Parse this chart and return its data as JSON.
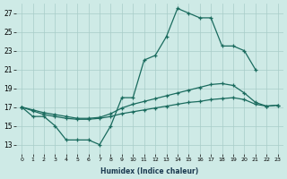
{
  "xlabel": "Humidex (Indice chaleur)",
  "line_color": "#1a6b5e",
  "bg_color": "#ceeae6",
  "grid_color": "#a8cdc8",
  "ylim": [
    12,
    28
  ],
  "xlim": [
    -0.5,
    23.5
  ],
  "yticks": [
    13,
    15,
    17,
    19,
    21,
    23,
    25,
    27
  ],
  "xticks": [
    0,
    1,
    2,
    3,
    4,
    5,
    6,
    7,
    8,
    9,
    10,
    11,
    12,
    13,
    14,
    15,
    16,
    17,
    18,
    19,
    20,
    21,
    22,
    23
  ],
  "main_x": [
    0,
    1,
    2,
    3,
    4,
    5,
    6,
    7,
    8,
    9,
    10,
    11,
    12,
    13,
    14,
    15,
    16,
    17,
    18,
    19,
    20,
    21
  ],
  "main_y": [
    17,
    16,
    16,
    15,
    13.5,
    13.5,
    13.5,
    13,
    15,
    18,
    18,
    22,
    22.5,
    24.5,
    27.5,
    27,
    26.5,
    26.5,
    23.5,
    23.5,
    23,
    21
  ],
  "upper_x": [
    0,
    1,
    2,
    3,
    4,
    5,
    6,
    7,
    8,
    9,
    10,
    11,
    12,
    13,
    14,
    15,
    16,
    17,
    18,
    19,
    20,
    21,
    22,
    23
  ],
  "upper_y": [
    17,
    16.7,
    16.4,
    16.2,
    16.0,
    15.8,
    15.8,
    15.9,
    16.3,
    16.9,
    17.3,
    17.6,
    17.9,
    18.2,
    18.5,
    18.8,
    19.1,
    19.4,
    19.5,
    19.3,
    18.5,
    17.5,
    17.1,
    17.2
  ],
  "lower_x": [
    0,
    1,
    2,
    3,
    4,
    5,
    6,
    7,
    8,
    9,
    10,
    11,
    12,
    13,
    14,
    15,
    16,
    17,
    18,
    19,
    20,
    21,
    22,
    23
  ],
  "lower_y": [
    17,
    16.6,
    16.2,
    16.0,
    15.8,
    15.7,
    15.7,
    15.8,
    16.0,
    16.3,
    16.5,
    16.7,
    16.9,
    17.1,
    17.3,
    17.5,
    17.6,
    17.8,
    17.9,
    18.0,
    17.8,
    17.3,
    17.1,
    17.2
  ]
}
